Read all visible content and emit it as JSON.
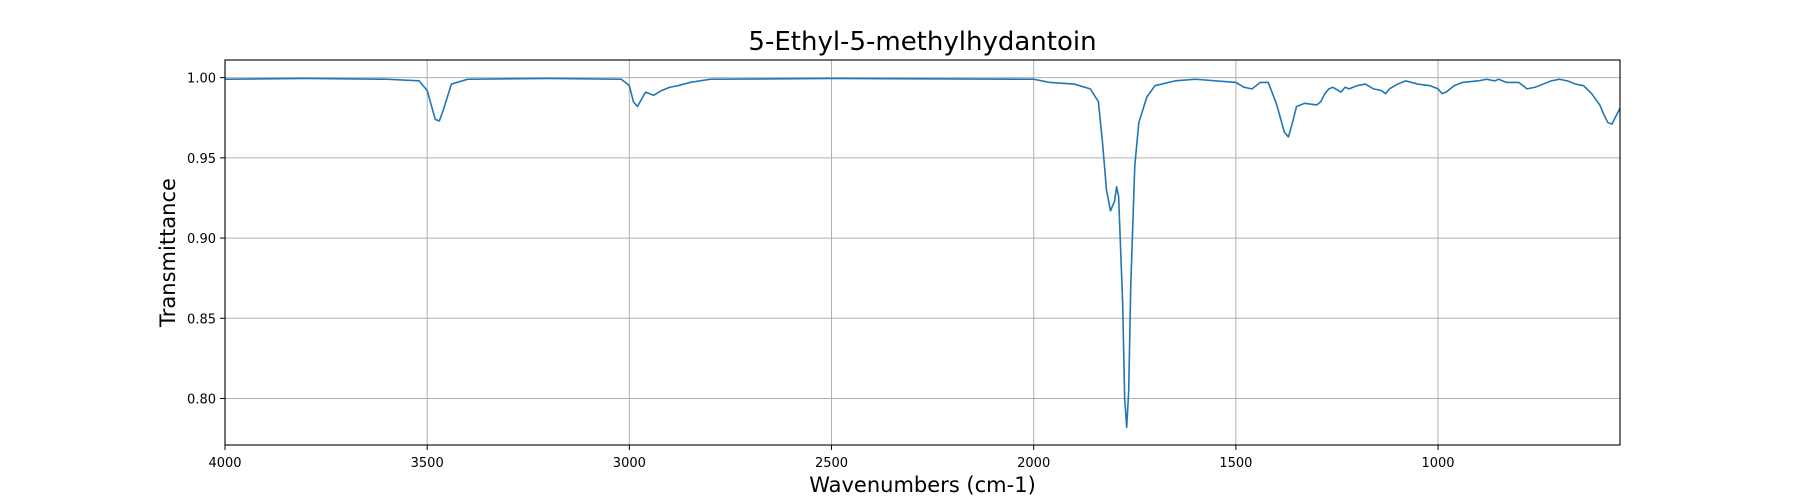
{
  "chart_data": {
    "type": "line",
    "title": "5-Ethyl-5-methylhydantoin",
    "xlabel": "Wavenumbers (cm-1)",
    "ylabel": "Transmittance",
    "xlim": [
      4000,
      550
    ],
    "ylim": [
      0.771,
      1.011
    ],
    "x_inverted": true,
    "grid": true,
    "x_ticks": [
      4000,
      3500,
      3000,
      2500,
      2000,
      1500,
      1000
    ],
    "x_tick_labels": [
      "4000",
      "3500",
      "3000",
      "2500",
      "2000",
      "1500",
      "1000"
    ],
    "y_ticks": [
      0.8,
      0.85,
      0.9,
      0.95,
      1.0
    ],
    "y_tick_labels": [
      "0.80",
      "0.85",
      "0.90",
      "0.95",
      "1.00"
    ],
    "series": [
      {
        "color": "#1f77b4",
        "x": [
          4000,
          3800,
          3600,
          3520,
          3500,
          3490,
          3480,
          3470,
          3460,
          3440,
          3400,
          3200,
          3020,
          3000,
          2990,
          2980,
          2960,
          2940,
          2920,
          2900,
          2880,
          2850,
          2800,
          2500,
          2000,
          1960,
          1900,
          1860,
          1840,
          1830,
          1820,
          1810,
          1800,
          1795,
          1790,
          1780,
          1775,
          1770,
          1765,
          1760,
          1750,
          1740,
          1720,
          1700,
          1650,
          1600,
          1500,
          1480,
          1460,
          1440,
          1420,
          1400,
          1390,
          1380,
          1370,
          1360,
          1350,
          1330,
          1300,
          1290,
          1280,
          1270,
          1260,
          1240,
          1230,
          1220,
          1200,
          1180,
          1160,
          1140,
          1130,
          1120,
          1100,
          1080,
          1050,
          1020,
          1000,
          990,
          980,
          960,
          940,
          900,
          880,
          860,
          850,
          830,
          800,
          780,
          760,
          740,
          720,
          700,
          680,
          660,
          640,
          620,
          600,
          590,
          580,
          570,
          560,
          550
        ],
        "y": [
          0.999,
          0.9995,
          0.999,
          0.998,
          0.992,
          0.983,
          0.974,
          0.973,
          0.98,
          0.996,
          0.999,
          0.9995,
          0.999,
          0.995,
          0.985,
          0.982,
          0.991,
          0.989,
          0.992,
          0.994,
          0.995,
          0.997,
          0.999,
          0.9995,
          0.999,
          0.997,
          0.996,
          0.993,
          0.985,
          0.96,
          0.93,
          0.917,
          0.923,
          0.932,
          0.926,
          0.86,
          0.8,
          0.782,
          0.805,
          0.87,
          0.945,
          0.972,
          0.988,
          0.995,
          0.998,
          0.999,
          0.997,
          0.994,
          0.993,
          0.997,
          0.997,
          0.984,
          0.975,
          0.966,
          0.963,
          0.972,
          0.982,
          0.984,
          0.983,
          0.985,
          0.99,
          0.993,
          0.994,
          0.991,
          0.994,
          0.993,
          0.995,
          0.996,
          0.993,
          0.992,
          0.99,
          0.993,
          0.996,
          0.998,
          0.996,
          0.995,
          0.993,
          0.99,
          0.991,
          0.995,
          0.997,
          0.998,
          0.999,
          0.998,
          0.999,
          0.997,
          0.997,
          0.993,
          0.994,
          0.996,
          0.998,
          0.999,
          0.998,
          0.996,
          0.995,
          0.99,
          0.983,
          0.977,
          0.972,
          0.971,
          0.976,
          0.981
        ]
      }
    ]
  }
}
